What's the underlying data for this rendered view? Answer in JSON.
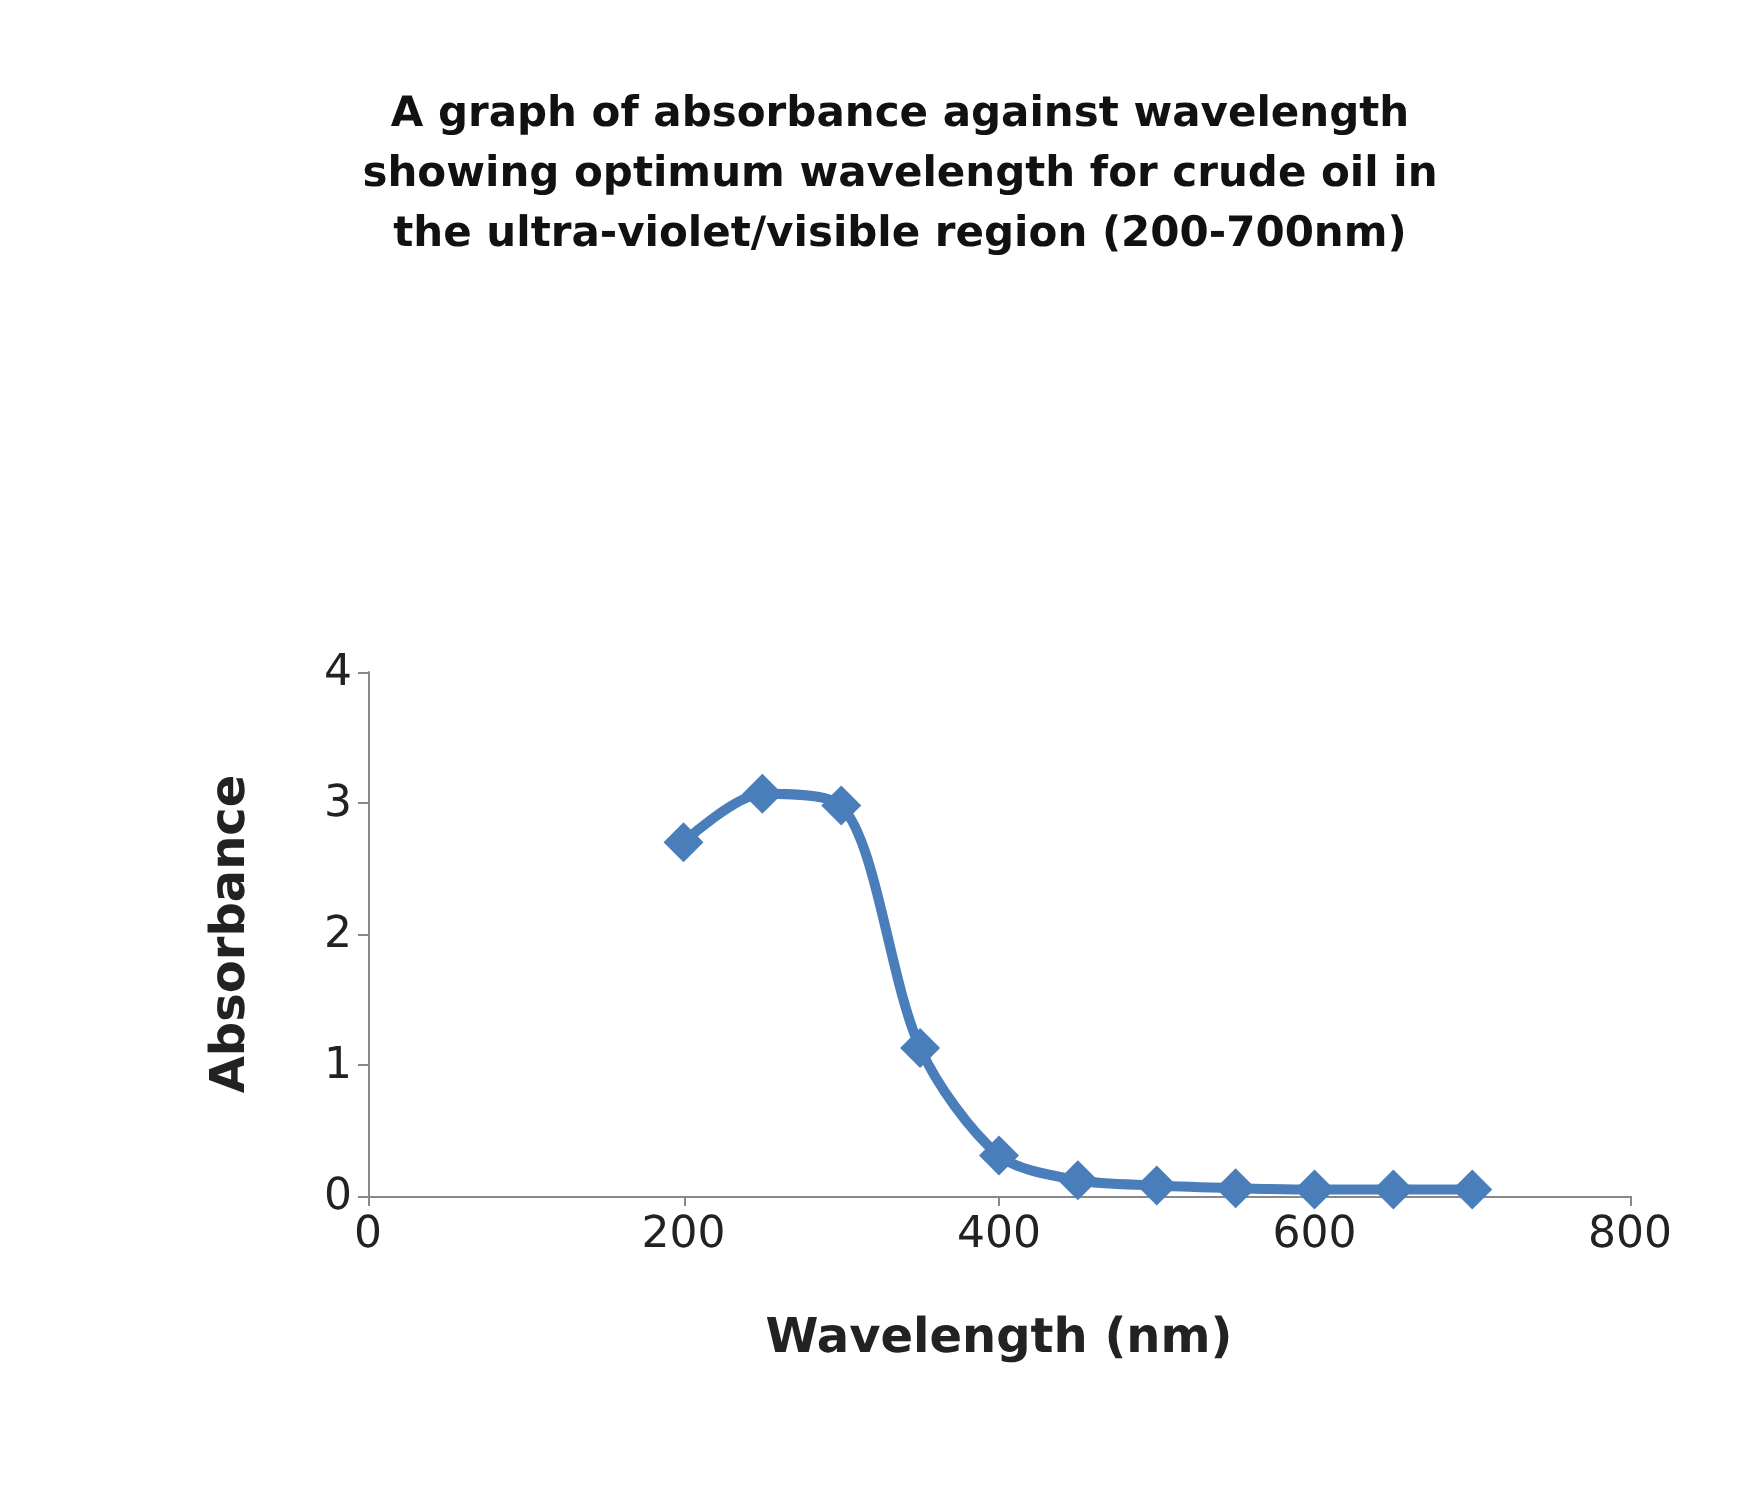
{
  "chart_data": {
    "type": "line",
    "title": "A graph of absorbance against wavelength\nshowing optimum wavelength for crude oil in\nthe ultra-violet/visible region (200-700nm)",
    "xlabel": "Wavelength (nm)",
    "ylabel": "Absorbance",
    "x": [
      200,
      250,
      300,
      350,
      400,
      450,
      500,
      550,
      600,
      650,
      700
    ],
    "series": [
      {
        "color": "#4a7ebb",
        "values": [
          2.7,
          3.07,
          2.98,
          1.13,
          0.31,
          0.12,
          0.08,
          0.06,
          0.05,
          0.05,
          0.05
        ]
      }
    ],
    "xlim": [
      0,
      800
    ],
    "xticks": [
      0,
      200,
      400,
      600,
      800
    ],
    "ylim": [
      0,
      4
    ],
    "yticks": [
      0,
      1,
      2,
      3,
      4
    ],
    "marker": "diamond",
    "line_style": "solid"
  }
}
